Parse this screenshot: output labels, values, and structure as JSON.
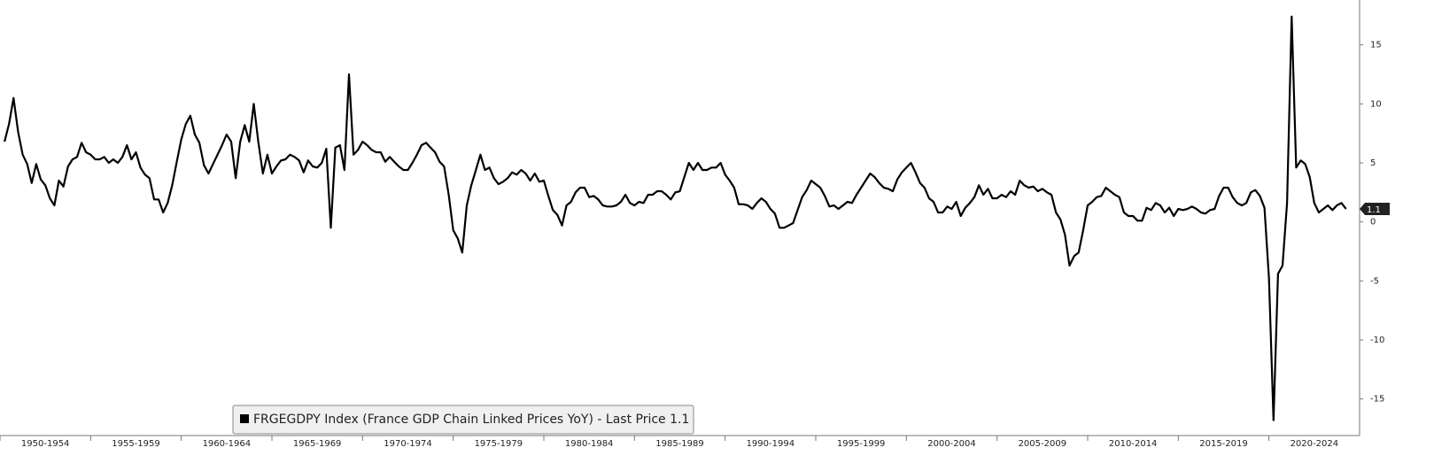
{
  "chart_data": {
    "type": "line",
    "series": [
      {
        "name": "FRGEGDPY Index (France GDP Chain Linked Prices YoY) - Last Price 1.1",
        "color": "#000000",
        "values": [
          6.8,
          8.3,
          10.5,
          7.6,
          5.7,
          4.9,
          3.3,
          4.9,
          3.6,
          3.1,
          2.0,
          1.4,
          3.5,
          3.0,
          4.7,
          5.3,
          5.5,
          6.7,
          5.9,
          5.7,
          5.3,
          5.3,
          5.5,
          5.0,
          5.3,
          5.0,
          5.5,
          6.5,
          5.3,
          5.9,
          4.6,
          4.0,
          3.7,
          1.9,
          1.9,
          0.8,
          1.6,
          3.1,
          5.1,
          7.0,
          8.3,
          9.0,
          7.4,
          6.7,
          4.8,
          4.1,
          4.9,
          5.7,
          6.5,
          7.4,
          6.8,
          3.7,
          6.8,
          8.2,
          6.8,
          10.0,
          6.8,
          4.1,
          5.7,
          4.1,
          4.7,
          5.2,
          5.3,
          5.7,
          5.5,
          5.2,
          4.2,
          5.2,
          4.7,
          4.6,
          5.0,
          6.2,
          -0.5,
          6.3,
          6.5,
          4.4,
          12.5,
          5.7,
          6.1,
          6.8,
          6.5,
          6.1,
          5.9,
          5.9,
          5.1,
          5.5,
          5.1,
          4.7,
          4.4,
          4.4,
          5.0,
          5.7,
          6.5,
          6.7,
          6.3,
          5.9,
          5.1,
          4.7,
          2.3,
          -0.7,
          -1.4,
          -2.6,
          1.4,
          3.1,
          4.4,
          5.7,
          4.4,
          4.6,
          3.7,
          3.2,
          3.4,
          3.7,
          4.2,
          4.0,
          4.4,
          4.1,
          3.5,
          4.1,
          3.4,
          3.5,
          2.2,
          1.0,
          0.6,
          -0.3,
          1.4,
          1.7,
          2.5,
          2.9,
          2.9,
          2.1,
          2.2,
          1.9,
          1.4,
          1.3,
          1.3,
          1.4,
          1.7,
          2.3,
          1.6,
          1.4,
          1.7,
          1.6,
          2.3,
          2.3,
          2.6,
          2.6,
          2.3,
          1.9,
          2.5,
          2.6,
          3.8,
          5.0,
          4.4,
          5.0,
          4.4,
          4.4,
          4.6,
          4.6,
          5.0,
          4.0,
          3.5,
          2.9,
          1.5,
          1.5,
          1.4,
          1.1,
          1.6,
          2.0,
          1.7,
          1.1,
          0.7,
          -0.5,
          -0.5,
          -0.3,
          -0.1,
          1.0,
          2.1,
          2.7,
          3.5,
          3.2,
          2.9,
          2.2,
          1.3,
          1.4,
          1.1,
          1.4,
          1.7,
          1.6,
          2.3,
          2.9,
          3.5,
          4.1,
          3.8,
          3.3,
          2.9,
          2.8,
          2.6,
          3.6,
          4.2,
          4.6,
          5.0,
          4.2,
          3.3,
          2.9,
          2.0,
          1.7,
          0.8,
          0.8,
          1.3,
          1.1,
          1.7,
          0.5,
          1.2,
          1.6,
          2.1,
          3.1,
          2.3,
          2.8,
          2.0,
          2.0,
          2.3,
          2.1,
          2.6,
          2.3,
          3.5,
          3.1,
          2.9,
          3.0,
          2.6,
          2.8,
          2.5,
          2.3,
          0.8,
          0.2,
          -1.1,
          -3.7,
          -2.9,
          -2.6,
          -0.7,
          1.4,
          1.7,
          2.1,
          2.2,
          2.9,
          2.6,
          2.3,
          2.1,
          0.8,
          0.5,
          0.5,
          0.1,
          0.1,
          1.2,
          1.0,
          1.6,
          1.4,
          0.8,
          1.2,
          0.5,
          1.1,
          1.0,
          1.1,
          1.3,
          1.1,
          0.8,
          0.7,
          1.0,
          1.1,
          2.2,
          2.9,
          2.9,
          2.1,
          1.6,
          1.4,
          1.6,
          2.5,
          2.7,
          2.2,
          1.2,
          -4.8,
          -16.8,
          -4.4,
          -3.7,
          1.6,
          17.4,
          4.6,
          5.2,
          4.9,
          3.8,
          1.6,
          0.8,
          1.1,
          1.4,
          1.0,
          1.4,
          1.6,
          1.1
        ]
      }
    ],
    "x": [
      1950.25,
      1950.5,
      1950.75,
      1951,
      1951.25,
      1951.5,
      1951.75,
      1952,
      1952.25,
      1952.5,
      1952.75,
      1953,
      1953.25,
      1953.5,
      1953.75,
      1954,
      1954.25,
      1954.5,
      1954.75,
      1955,
      1955.25,
      1955.5,
      1955.75,
      1956,
      1956.25,
      1956.5,
      1956.75,
      1957,
      1957.25,
      1957.5,
      1957.75,
      1958,
      1958.25,
      1958.5,
      1958.75,
      1959,
      1959.25,
      1959.5,
      1959.75,
      1960,
      1960.25,
      1960.5,
      1960.75,
      1961,
      1961.25,
      1961.5,
      1961.75,
      1962,
      1962.25,
      1962.5,
      1962.75,
      1963,
      1963.25,
      1963.5,
      1963.75,
      1964,
      1964.25,
      1964.5,
      1964.75,
      1965,
      1965.25,
      1965.5,
      1965.75,
      1966,
      1966.25,
      1966.5,
      1966.75,
      1967,
      1967.25,
      1967.5,
      1967.75,
      1968,
      1968.25,
      1968.5,
      1968.75,
      1969,
      1969.25,
      1969.5,
      1969.75,
      1970,
      1970.25,
      1970.5,
      1970.75,
      1971,
      1971.25,
      1971.5,
      1971.75,
      1972,
      1972.25,
      1972.5,
      1972.75,
      1973,
      1973.25,
      1973.5,
      1973.75,
      1974,
      1974.25,
      1974.5,
      1974.75,
      1975,
      1975.25,
      1975.5,
      1975.75,
      1976,
      1976.25,
      1976.5,
      1976.75,
      1977,
      1977.25,
      1977.5,
      1977.75,
      1978,
      1978.25,
      1978.5,
      1978.75,
      1979,
      1979.25,
      1979.5,
      1979.75,
      1980,
      1980.25,
      1980.5,
      1980.75,
      1981,
      1981.25,
      1981.5,
      1981.75,
      1982,
      1982.25,
      1982.5,
      1982.75,
      1983,
      1983.25,
      1983.5,
      1983.75,
      1984,
      1984.25,
      1984.5,
      1984.75,
      1985,
      1985.25,
      1985.5,
      1985.75,
      1986,
      1986.25,
      1986.5,
      1986.75,
      1987,
      1987.25,
      1987.5,
      1987.75,
      1988,
      1988.25,
      1988.5,
      1988.75,
      1989,
      1989.25,
      1989.5,
      1989.75,
      1990,
      1990.25,
      1990.5,
      1990.75,
      1991,
      1991.25,
      1991.5,
      1991.75,
      1992,
      1992.25,
      1992.5,
      1992.75,
      1993,
      1993.25,
      1993.5,
      1993.75,
      1994,
      1994.25,
      1994.5,
      1994.75,
      1995,
      1995.25,
      1995.5,
      1995.75,
      1996,
      1996.25,
      1996.5,
      1996.75,
      1997,
      1997.25,
      1997.5,
      1997.75,
      1998,
      1998.25,
      1998.5,
      1998.75,
      1999,
      1999.25,
      1999.5,
      1999.75,
      2000,
      2000.25,
      2000.5,
      2000.75,
      2001,
      2001.25,
      2001.5,
      2001.75,
      2002,
      2002.25,
      2002.5,
      2002.75,
      2003,
      2003.25,
      2003.5,
      2003.75,
      2004,
      2004.25,
      2004.5,
      2004.75,
      2005,
      2005.25,
      2005.5,
      2005.75,
      2006,
      2006.25,
      2006.5,
      2006.75,
      2007,
      2007.25,
      2007.5,
      2007.75,
      2008,
      2008.25,
      2008.5,
      2008.75,
      2009,
      2009.25,
      2009.5,
      2009.75,
      2010,
      2010.25,
      2010.5,
      2010.75,
      2011,
      2011.25,
      2011.5,
      2011.75,
      2012,
      2012.25,
      2012.5,
      2012.75,
      2013,
      2013.25,
      2013.5,
      2013.75,
      2014,
      2014.25,
      2014.5,
      2014.75,
      2015,
      2015.25,
      2015.5,
      2015.75,
      2016,
      2016.25,
      2016.5,
      2016.75,
      2017,
      2017.25,
      2017.5,
      2017.75,
      2018,
      2018.25,
      2018.5,
      2018.75,
      2019,
      2019.25,
      2019.5,
      2019.75,
      2020,
      2020.25,
      2020.5,
      2020.75,
      2021,
      2021.25,
      2021.5,
      2021.75,
      2022,
      2022.25,
      2022.5,
      2022.75,
      2023,
      2023.25,
      2023.5,
      2023.75,
      2024,
      2024.25
    ],
    "xlim": [
      1950,
      2025
    ],
    "xticks": [
      {
        "value": 1950,
        "label": "1950-1954"
      },
      {
        "value": 1955,
        "label": "1955-1959"
      },
      {
        "value": 1960,
        "label": "1960-1964"
      },
      {
        "value": 1965,
        "label": "1965-1969"
      },
      {
        "value": 1970,
        "label": "1970-1974"
      },
      {
        "value": 1975,
        "label": "1975-1979"
      },
      {
        "value": 1980,
        "label": "1980-1984"
      },
      {
        "value": 1985,
        "label": "1985-1989"
      },
      {
        "value": 1990,
        "label": "1990-1994"
      },
      {
        "value": 1995,
        "label": "1995-1999"
      },
      {
        "value": 2000,
        "label": "2000-2004"
      },
      {
        "value": 2005,
        "label": "2005-2009"
      },
      {
        "value": 2010,
        "label": "2010-2014"
      },
      {
        "value": 2015,
        "label": "2015-2019"
      },
      {
        "value": 2020,
        "label": "2020-2024"
      }
    ],
    "ylim": [
      -18.1,
      18.8
    ],
    "yticks": [
      -15,
      -10,
      -5,
      0,
      5,
      10,
      15
    ],
    "grid": false
  }
}
